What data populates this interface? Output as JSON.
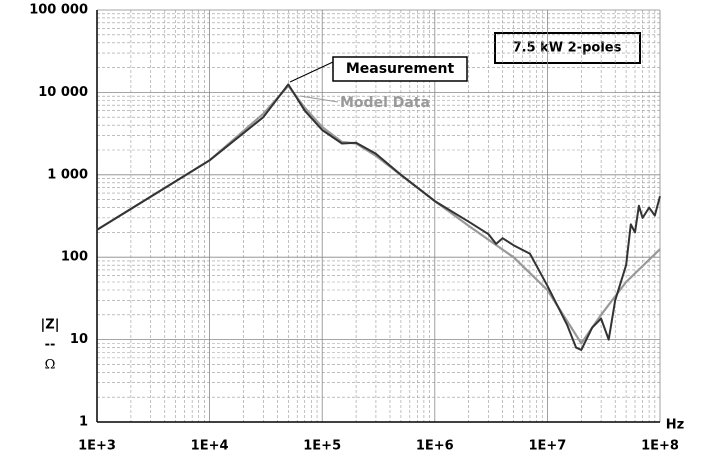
{
  "chart_data": {
    "type": "line",
    "annotation": "7.5 kW 2-poles",
    "x_label": "Hz",
    "y_label": [
      "|Z|",
      "--",
      "Ω"
    ],
    "xscale": "log",
    "yscale": "log",
    "grid": true,
    "minor_grid": true,
    "xlim": [
      1000,
      100000000
    ],
    "xticks": [
      {
        "value": 1000,
        "label": "1E+3"
      },
      {
        "value": 10000,
        "label": "1E+4"
      },
      {
        "value": 100000,
        "label": "1E+5"
      },
      {
        "value": 1000000,
        "label": "1E+6"
      },
      {
        "value": 10000000,
        "label": "1E+7"
      },
      {
        "value": 100000000,
        "label": "1E+8"
      }
    ],
    "ylim": [
      1,
      100000
    ],
    "yticks": [
      1,
      10,
      100,
      {
        "value": 1000,
        "label": "1 000"
      },
      {
        "value": 10000,
        "label": "10 000"
      },
      {
        "value": 100000,
        "label": "100 000"
      }
    ],
    "series": [
      {
        "name": "Measurement",
        "color": "#333333",
        "x": [
          1000,
          10000,
          30000,
          50000,
          70000,
          100000,
          150000,
          200000,
          300000,
          500000,
          1000000,
          2000000,
          3000000,
          3500000,
          4000000,
          5000000,
          7000000,
          10000000,
          15000000,
          18000000,
          20000000,
          25000000,
          30000000,
          35000000,
          40000000,
          50000000,
          55000000,
          60000000,
          65000000,
          70000000,
          80000000,
          90000000,
          100000000
        ],
        "values": [
          215,
          1500,
          5000,
          12500,
          6000,
          3500,
          2400,
          2450,
          1800,
          1000,
          480,
          270,
          190,
          145,
          170,
          140,
          110,
          45,
          15,
          8,
          7.5,
          14,
          18,
          10,
          30,
          80,
          250,
          200,
          420,
          300,
          400,
          320,
          550
        ]
      },
      {
        "name": "Model Data",
        "color": "#999999",
        "x": [
          1000,
          10000,
          30000,
          50000,
          70000,
          100000,
          150000,
          200000,
          300000,
          1000000,
          2000000,
          5000000,
          10000000,
          20000000,
          30000000,
          50000000,
          100000000
        ],
        "values": [
          215,
          1500,
          5500,
          12000,
          6500,
          3800,
          2500,
          2400,
          1700,
          480,
          240,
          100,
          40,
          9,
          20,
          50,
          125
        ]
      }
    ]
  }
}
